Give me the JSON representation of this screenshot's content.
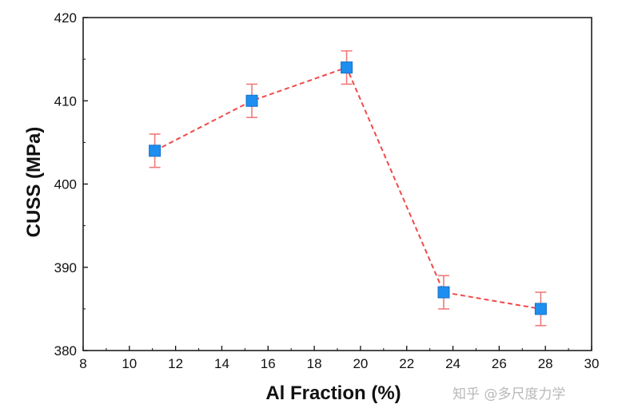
{
  "chart_data": {
    "type": "line",
    "title": "",
    "xlabel": "Al Fraction (%)",
    "ylabel": "CUSS (MPa)",
    "xlim": [
      8,
      30
    ],
    "ylim": [
      380,
      420
    ],
    "xticks": [
      "8",
      "10",
      "12",
      "14",
      "16",
      "18",
      "20",
      "22",
      "24",
      "26",
      "28",
      "30"
    ],
    "yticks": [
      "380",
      "390",
      "400",
      "410",
      "420"
    ],
    "series": [
      {
        "x": [
          11.1,
          15.3,
          19.4,
          23.6,
          27.8
        ],
        "y": [
          404,
          410,
          414,
          387,
          385
        ],
        "yerr": [
          2,
          2,
          2,
          2,
          2
        ]
      }
    ],
    "line_style": "dashed",
    "line_color": "#f04a4a",
    "marker": "square",
    "marker_color": "#1e8ff0",
    "errorbar_color": "#f07a7a",
    "grid": false
  },
  "watermark": "知乎 @多尺度力学"
}
